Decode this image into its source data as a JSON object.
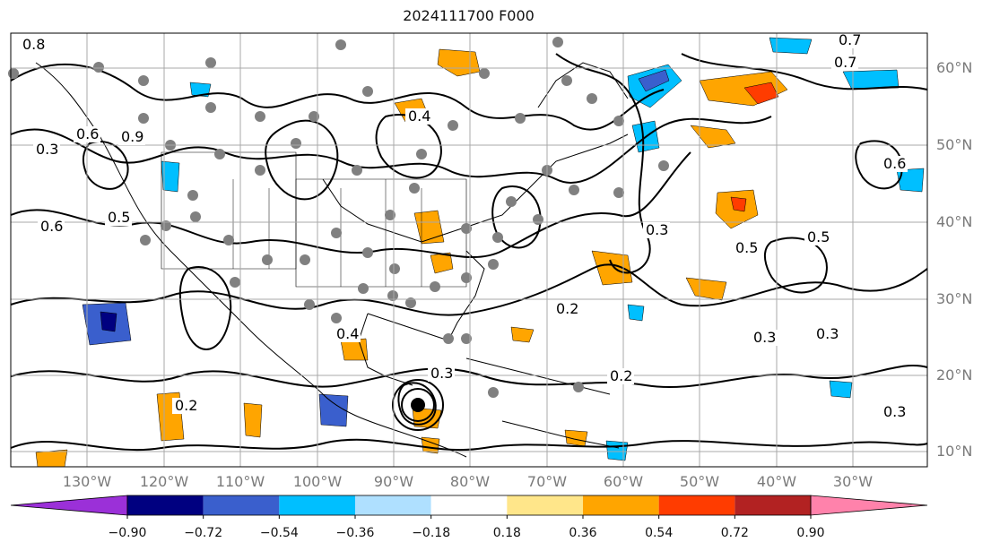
{
  "title": "2024111700 F000",
  "lat_labels": [
    "60°N",
    "50°N",
    "40°N",
    "30°N",
    "20°N",
    "10°N"
  ],
  "lon_labels": [
    "130°W",
    "120°W",
    "110°W",
    "100°W",
    "90°W",
    "80°W",
    "70°W",
    "60°W",
    "50°W",
    "40°W",
    "30°W"
  ],
  "contour_labels": [
    "0.8",
    "0.7",
    "0.3",
    "0.6",
    "0.5",
    "0.6",
    "0.9",
    "0.2",
    "0.4",
    "0.3",
    "0.2",
    "0.3",
    "0.2",
    "0.3",
    "0.5",
    "0.6",
    "0.3",
    "0.4",
    "0.7",
    "0.5",
    "0.3"
  ],
  "colorbar": {
    "ticks": [
      "−0.90",
      "−0.72",
      "−0.54",
      "−0.36",
      "−0.18",
      "0.18",
      "0.36",
      "0.54",
      "0.72",
      "0.90"
    ],
    "colors": [
      "#9b30d8",
      "#000080",
      "#3a5fcd",
      "#00bfff",
      "#afe0ff",
      "#ffffff",
      "#ffe68a",
      "#ffa500",
      "#ff3c00",
      "#b22222",
      "#ff82ab"
    ]
  },
  "colors": {
    "contour": "#000000",
    "grid": "#a8a8a8",
    "coast": "#000000",
    "dots": "#808080",
    "axis_label": "#7a7a7a"
  }
}
